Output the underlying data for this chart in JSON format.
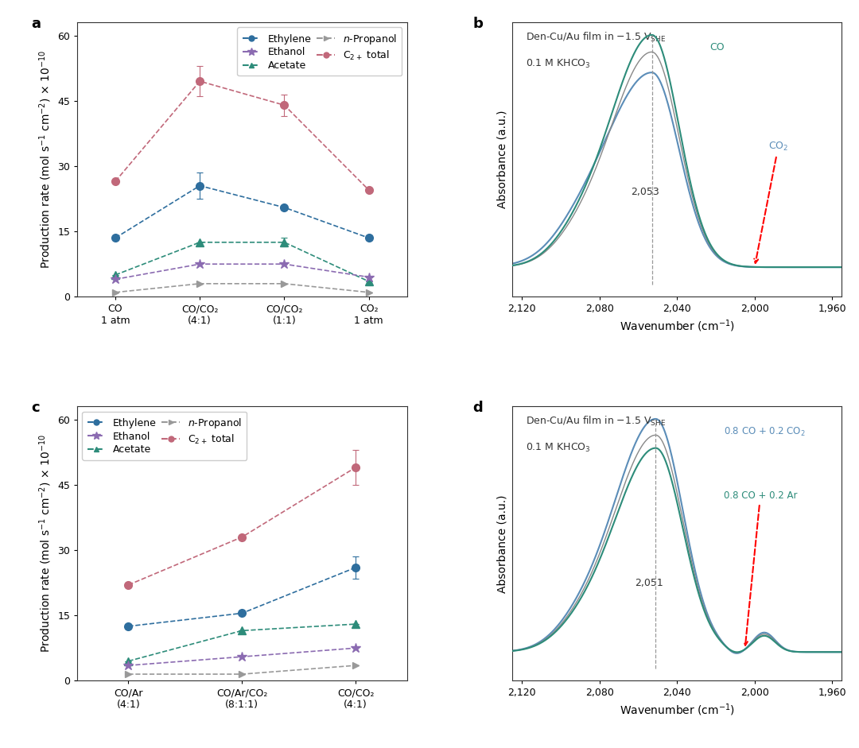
{
  "panel_a": {
    "x_labels": [
      "CO\n1 atm",
      "CO/CO₂\n(4:1)",
      "CO/CO₂\n(1:1)",
      "CO₂\n1 atm"
    ],
    "ethylene": [
      13.5,
      25.5,
      20.5,
      13.5
    ],
    "ethylene_err": [
      0,
      3.0,
      0,
      0
    ],
    "acetate": [
      5.0,
      12.5,
      12.5,
      3.5
    ],
    "acetate_err": [
      0,
      0,
      1.0,
      0
    ],
    "ethanol": [
      4.0,
      7.5,
      7.5,
      4.5
    ],
    "ethanol_err": [
      0,
      0,
      0,
      0
    ],
    "npropanol": [
      1.0,
      3.0,
      3.0,
      1.0
    ],
    "npropanol_err": [
      0,
      0,
      0,
      0
    ],
    "c2total": [
      26.5,
      49.5,
      44.0,
      24.5
    ],
    "c2total_err": [
      0,
      3.5,
      2.5,
      0
    ],
    "ylim": [
      0,
      63
    ],
    "yticks": [
      0,
      15,
      30,
      45,
      60
    ]
  },
  "panel_c": {
    "x_labels": [
      "CO/Ar\n(4:1)",
      "CO/Ar/CO₂\n(8:1:1)",
      "CO/CO₂\n(4:1)"
    ],
    "ethylene": [
      12.5,
      15.5,
      26.0
    ],
    "ethylene_err": [
      0,
      0,
      2.5
    ],
    "acetate": [
      4.5,
      11.5,
      13.0
    ],
    "acetate_err": [
      0,
      0,
      0
    ],
    "ethanol": [
      3.5,
      5.5,
      7.5
    ],
    "ethanol_err": [
      0,
      0,
      0
    ],
    "npropanol": [
      1.5,
      1.5,
      3.5
    ],
    "npropanol_err": [
      0,
      0,
      0
    ],
    "c2total": [
      22.0,
      33.0,
      49.0
    ],
    "c2total_err": [
      0,
      0,
      4.0
    ],
    "ylim": [
      0,
      63
    ],
    "yticks": [
      0,
      15,
      30,
      45,
      60
    ]
  },
  "colors": {
    "ethylene": "#2E6E9E",
    "acetate": "#2D8C7A",
    "ethanol": "#8B6BB1",
    "npropanol": "#999999",
    "c2total": "#C1687A"
  },
  "spectrum_b": {
    "peak_wn": 2053,
    "xlim_left": 2125,
    "xlim_right": 1955,
    "xticks": [
      2120,
      2080,
      2040,
      2000,
      1960
    ],
    "peak_label": "2,053",
    "co_color": "#2D8C7A",
    "co2_color": "#5B8DB8",
    "gray_color": "#888888",
    "vline_color": "#999999"
  },
  "spectrum_d": {
    "peak_wn": 2051,
    "xlim_left": 2125,
    "xlim_right": 1955,
    "xticks": [
      2120,
      2080,
      2040,
      2000,
      1960
    ],
    "peak_label": "2,051",
    "co_co2_color": "#5B8DB8",
    "co_ar_color": "#2D8C7A",
    "gray_color": "#888888",
    "vline_color": "#999999"
  },
  "background_color": "#ffffff",
  "panel_label_fontsize": 13,
  "axis_fontsize": 10,
  "tick_fontsize": 9,
  "legend_fontsize": 9
}
